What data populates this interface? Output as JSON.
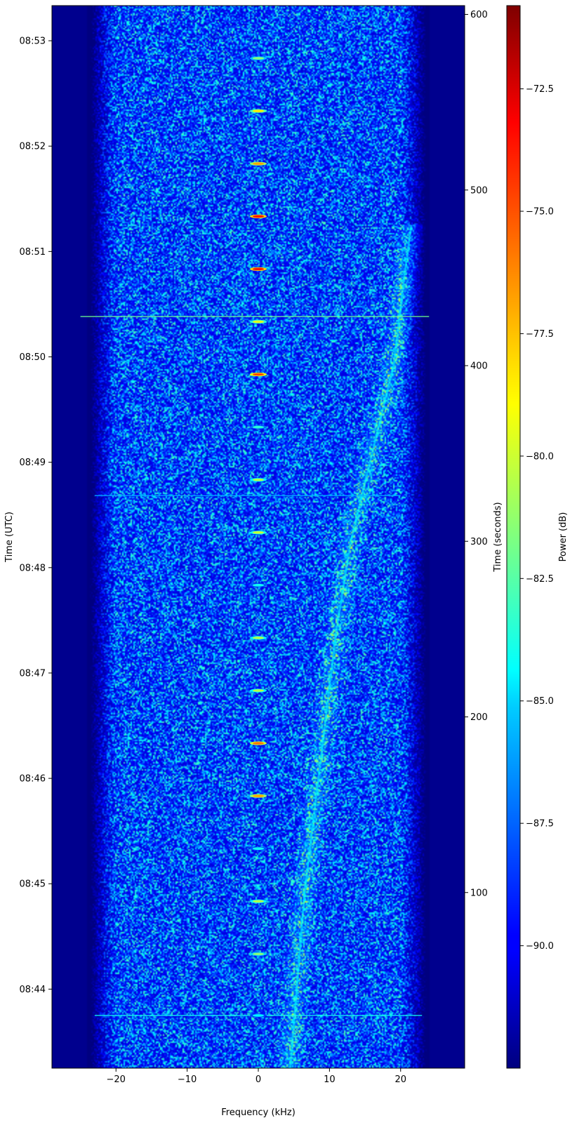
{
  "chart_data": {
    "type": "heatmap",
    "colormap": "jet",
    "xlabel": "Frequency (kHz)",
    "ylabel_left": "Time (UTC)",
    "ylabel_right": "Time (seconds)",
    "colorbar_label": "Power (dB)",
    "xlim": [
      -29,
      29
    ],
    "ylim_seconds": [
      0,
      605
    ],
    "color_range_db": [
      -92.5,
      -70.8
    ],
    "x_ticks": [
      -20,
      -10,
      0,
      10,
      20
    ],
    "x_tick_labels": [
      "−20",
      "−10",
      "0",
      "10",
      "20"
    ],
    "left_ticks_seconds": [
      45,
      105,
      165,
      225,
      285,
      345,
      405,
      465,
      525,
      585
    ],
    "left_tick_labels": [
      "08:44",
      "08:45",
      "08:46",
      "08:47",
      "08:48",
      "08:49",
      "08:50",
      "08:51",
      "08:52",
      "08:53"
    ],
    "right_ticks": [
      100,
      200,
      300,
      400,
      500,
      600
    ],
    "right_tick_labels": [
      "100",
      "200",
      "300",
      "400",
      "500",
      "600"
    ],
    "colorbar_ticks": [
      -90.0,
      -87.5,
      -85.0,
      -82.5,
      -80.0,
      -77.5,
      -75.0,
      -72.5
    ],
    "colorbar_tick_labels": [
      "−90.0",
      "−87.5",
      "−85.0",
      "−82.5",
      "−80.0",
      "−77.5",
      "−75.0",
      "−72.5"
    ],
    "signal_passband_khz": [
      -23,
      23
    ],
    "noise_floor_db": -87.5,
    "doppler_trace": [
      {
        "t": 0,
        "f": 4.5
      },
      {
        "t": 100,
        "f": 6.5
      },
      {
        "t": 200,
        "f": 9.5
      },
      {
        "t": 250,
        "f": 11
      },
      {
        "t": 300,
        "f": 13
      },
      {
        "t": 350,
        "f": 16
      },
      {
        "t": 400,
        "f": 19
      },
      {
        "t": 450,
        "f": 20.5
      },
      {
        "t": 480,
        "f": 21.5
      }
    ],
    "carrier_bursts": [
      {
        "t": 30,
        "f": 0,
        "db": -84.5
      },
      {
        "t": 65,
        "f": 0,
        "db": -81.5
      },
      {
        "t": 95,
        "f": 0,
        "db": -80.5
      },
      {
        "t": 125,
        "f": 0,
        "db": -84
      },
      {
        "t": 155,
        "f": 0,
        "db": -77
      },
      {
        "t": 185,
        "f": 0,
        "db": -76
      },
      {
        "t": 215,
        "f": 0,
        "db": -80.5
      },
      {
        "t": 245,
        "f": 0,
        "db": -80.5
      },
      {
        "t": 275,
        "f": 0,
        "db": -84
      },
      {
        "t": 305,
        "f": 0,
        "db": -80
      },
      {
        "t": 335,
        "f": 0,
        "db": -80.5
      },
      {
        "t": 365,
        "f": 0,
        "db": -83.5
      },
      {
        "t": 395,
        "f": 0,
        "db": -75
      },
      {
        "t": 425,
        "f": 0,
        "db": -79.5
      },
      {
        "t": 455,
        "f": 0,
        "db": -74
      },
      {
        "t": 485,
        "f": 0,
        "db": -74
      },
      {
        "t": 515,
        "f": 0,
        "db": -77
      },
      {
        "t": 545,
        "f": 0,
        "db": -78.5
      },
      {
        "t": 575,
        "f": 0,
        "db": -81.5
      }
    ],
    "horizontal_spurs": [
      {
        "t": 30,
        "f_from": -23,
        "f_to": 23,
        "db": -84
      },
      {
        "t": 326,
        "f_from": -23,
        "f_to": 20,
        "db": -86
      },
      {
        "t": 428,
        "f_from": -25,
        "f_to": 24,
        "db": -82
      }
    ]
  }
}
